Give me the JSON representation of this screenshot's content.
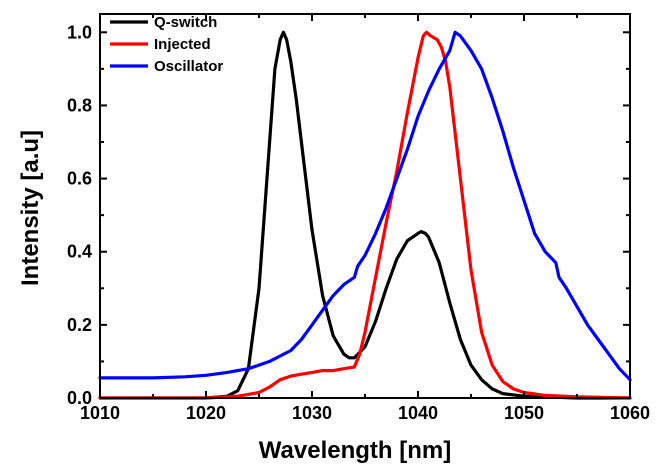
{
  "chart_data": {
    "type": "line",
    "xlabel": "Wavelength  [nm]",
    "ylabel": "Intensity  [a.u]",
    "xlim": [
      1010,
      1060
    ],
    "ylim": [
      0,
      1.05
    ],
    "xticks": [
      1010,
      1020,
      1030,
      1040,
      1050,
      1060
    ],
    "yticks": [
      0.0,
      0.2,
      0.4,
      0.6,
      0.8,
      1.0
    ],
    "xtick_labels": [
      "1010",
      "1020",
      "1030",
      "1040",
      "1050",
      "1060"
    ],
    "ytick_labels": [
      "0.0",
      "0.2",
      "0.4",
      "0.6",
      "0.8",
      "1.0"
    ],
    "grid": false,
    "legend_position": "top-left",
    "series": [
      {
        "name": "Q-switch",
        "color": "#000000",
        "x": [
          1010,
          1020,
          1022,
          1023,
          1024,
          1025,
          1026,
          1026.5,
          1027,
          1027.3,
          1027.6,
          1028,
          1028.5,
          1029,
          1030,
          1031,
          1032,
          1033,
          1033.5,
          1034,
          1035,
          1036,
          1037,
          1038,
          1039,
          1040,
          1040.3,
          1040.7,
          1041,
          1042,
          1043,
          1044,
          1045,
          1046,
          1047,
          1048,
          1050,
          1055,
          1060
        ],
        "y": [
          0.0,
          0.0,
          0.005,
          0.02,
          0.08,
          0.3,
          0.7,
          0.9,
          0.98,
          1.0,
          0.98,
          0.92,
          0.82,
          0.7,
          0.46,
          0.28,
          0.17,
          0.12,
          0.11,
          0.11,
          0.14,
          0.21,
          0.3,
          0.38,
          0.43,
          0.45,
          0.455,
          0.45,
          0.44,
          0.37,
          0.26,
          0.16,
          0.09,
          0.05,
          0.025,
          0.012,
          0.005,
          0.0,
          0.0
        ]
      },
      {
        "name": "Injected",
        "color": "#ff0000",
        "x": [
          1010,
          1020,
          1023,
          1025,
          1026,
          1027,
          1028,
          1029,
          1030,
          1031,
          1032,
          1033,
          1034,
          1034.5,
          1035,
          1036,
          1037,
          1038,
          1039,
          1040,
          1040.5,
          1040.8,
          1041.2,
          1041.8,
          1042.2,
          1042.6,
          1043,
          1044,
          1045,
          1046,
          1047,
          1048,
          1049,
          1050,
          1052,
          1055,
          1060
        ],
        "y": [
          0.0,
          0.0,
          0.005,
          0.015,
          0.03,
          0.05,
          0.06,
          0.065,
          0.07,
          0.075,
          0.075,
          0.08,
          0.085,
          0.12,
          0.18,
          0.33,
          0.48,
          0.62,
          0.78,
          0.93,
          0.99,
          1.0,
          0.99,
          0.98,
          0.96,
          0.92,
          0.85,
          0.6,
          0.35,
          0.18,
          0.09,
          0.045,
          0.025,
          0.015,
          0.007,
          0.003,
          0.0
        ]
      },
      {
        "name": "Oscillator",
        "color": "#0000ff",
        "x": [
          1010,
          1015,
          1018,
          1020,
          1022,
          1024,
          1026,
          1028,
          1029,
          1030,
          1031,
          1032,
          1033,
          1034,
          1034.3,
          1035,
          1036,
          1037,
          1038,
          1039,
          1040,
          1041,
          1042,
          1043,
          1043.5,
          1044,
          1045,
          1046,
          1047,
          1048,
          1049,
          1050,
          1051,
          1052,
          1053,
          1053.3,
          1054,
          1055,
          1056,
          1057,
          1058,
          1059,
          1060
        ],
        "y": [
          0.055,
          0.055,
          0.058,
          0.062,
          0.07,
          0.08,
          0.1,
          0.13,
          0.16,
          0.2,
          0.24,
          0.28,
          0.31,
          0.33,
          0.36,
          0.39,
          0.45,
          0.52,
          0.6,
          0.68,
          0.77,
          0.84,
          0.9,
          0.95,
          1.0,
          0.99,
          0.95,
          0.9,
          0.82,
          0.73,
          0.63,
          0.54,
          0.45,
          0.4,
          0.37,
          0.33,
          0.3,
          0.25,
          0.2,
          0.16,
          0.12,
          0.08,
          0.05
        ]
      }
    ]
  }
}
